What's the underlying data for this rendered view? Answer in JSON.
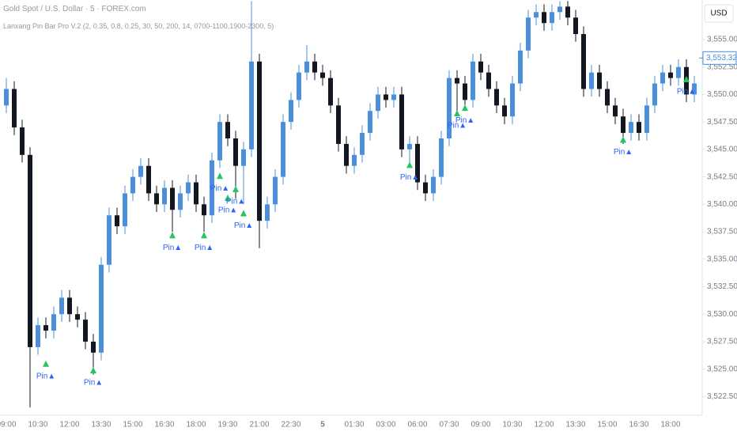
{
  "header": {
    "symbol": "Gold Spot / U.S. Dollar · 5 · FOREX.com",
    "indicator": "Lanxang Pin Bar Pro V.2 (2, 0.35, 0.8, 0.25, 30, 50, 200, 14, 0700-1100,1900-2300, 5)",
    "currency": "USD"
  },
  "chart_data": {
    "type": "candlestick",
    "categories": [
      "09:00",
      null,
      null,
      null,
      "10:30",
      null,
      null,
      null,
      "12:00",
      null,
      null,
      null,
      "13:30",
      null,
      null,
      null,
      "15:00",
      null,
      null,
      null,
      "16:30",
      null,
      null,
      null,
      "18:00",
      null,
      null,
      null,
      "19:30",
      null,
      null,
      null,
      "21:00",
      null,
      null,
      null,
      "22:30",
      null,
      null,
      null,
      "5",
      null,
      null,
      null,
      "01:30",
      null,
      null,
      null,
      "03:00",
      null,
      null,
      null,
      "06:00",
      null,
      null,
      null,
      "07:30",
      null,
      null,
      null,
      "09:00",
      null,
      null,
      null,
      "10:30",
      null,
      null,
      null,
      "12:00",
      null,
      null,
      null,
      "13:30",
      null,
      null,
      null,
      "15:00",
      null,
      null,
      null,
      "16:30",
      null,
      null,
      null,
      "18:00",
      null,
      null,
      null
    ],
    "open": [
      3549.0,
      3550.5,
      3547.0,
      3544.5,
      3527.0,
      3529.0,
      3528.5,
      3530.0,
      3531.5,
      3530.0,
      3529.5,
      3527.5,
      3526.5,
      3534.5,
      3539.0,
      3538.0,
      3541.0,
      3542.5,
      3543.5,
      3541.0,
      3540.0,
      3541.5,
      3539.5,
      3541.0,
      3542.0,
      3540.0,
      3539.0,
      3544.0,
      3547.5,
      3546.0,
      3543.5,
      3545.0,
      3553.0,
      3538.5,
      3540.0,
      3542.5,
      3547.5,
      3549.5,
      3552.0,
      3553.0,
      3552.0,
      3551.5,
      3549.0,
      3545.5,
      3543.5,
      3544.5,
      3546.5,
      3548.5,
      3550.0,
      3549.5,
      3550.0,
      3545.0,
      3545.5,
      3542.0,
      3541.0,
      3542.5,
      3546.0,
      3551.5,
      3551.0,
      3549.5,
      3553.0,
      3552.0,
      3550.5,
      3549.0,
      3548.0,
      3551.0,
      3554.0,
      3557.0,
      3557.5,
      3556.5,
      3557.5,
      3558.0,
      3557.0,
      3555.5,
      3550.5,
      3552.0,
      3550.5,
      3549.0,
      3548.0,
      3546.5,
      3547.5,
      3546.5,
      3549.0,
      3551.0,
      3552.0,
      3551.5,
      3552.5,
      3550.0
    ],
    "high": [
      3551.5,
      3551.2,
      3547.7,
      3545.2,
      3529.7,
      3529.7,
      3530.7,
      3532.2,
      3532.2,
      3530.7,
      3530.2,
      3528.2,
      3535.2,
      3539.7,
      3539.7,
      3541.7,
      3543.2,
      3544.2,
      3544.2,
      3541.7,
      3542.2,
      3542.2,
      3541.7,
      3542.7,
      3542.7,
      3540.7,
      3544.7,
      3548.2,
      3548.2,
      3546.7,
      3545.7,
      3558.5,
      3553.7,
      3540.7,
      3543.2,
      3548.2,
      3550.2,
      3552.7,
      3554.5,
      3553.7,
      3552.7,
      3552.2,
      3549.7,
      3546.2,
      3545.2,
      3547.2,
      3549.2,
      3550.7,
      3550.7,
      3550.7,
      3550.7,
      3546.2,
      3546.2,
      3542.7,
      3543.2,
      3546.7,
      3552.2,
      3552.2,
      3551.7,
      3553.7,
      3553.7,
      3552.7,
      3551.2,
      3549.7,
      3551.7,
      3554.7,
      3557.7,
      3558.2,
      3558.2,
      3558.2,
      3558.5,
      3558.5,
      3557.7,
      3556.2,
      3552.7,
      3552.7,
      3551.2,
      3549.7,
      3548.7,
      3548.2,
      3548.2,
      3549.7,
      3551.7,
      3552.7,
      3552.7,
      3553.2,
      3553.2,
      3551.7
    ],
    "low": [
      3548.3,
      3546.3,
      3543.8,
      3521.5,
      3526.3,
      3527.8,
      3527.8,
      3529.3,
      3529.3,
      3528.8,
      3526.8,
      3524.5,
      3525.8,
      3533.8,
      3537.3,
      3537.3,
      3540.3,
      3541.8,
      3540.3,
      3539.3,
      3539.3,
      3537.5,
      3538.8,
      3540.3,
      3539.3,
      3537.5,
      3538.3,
      3543.3,
      3545.3,
      3540.5,
      3540.0,
      3544.3,
      3536.0,
      3537.8,
      3539.3,
      3541.8,
      3546.8,
      3548.8,
      3551.3,
      3551.3,
      3550.8,
      3548.3,
      3544.8,
      3542.8,
      3542.8,
      3543.8,
      3545.8,
      3547.8,
      3548.8,
      3548.8,
      3544.3,
      3543.5,
      3541.3,
      3540.3,
      3540.3,
      3541.8,
      3545.3,
      3548.0,
      3548.5,
      3548.8,
      3551.3,
      3549.8,
      3548.3,
      3547.3,
      3547.3,
      3550.3,
      3553.3,
      3556.3,
      3555.8,
      3555.8,
      3556.8,
      3556.3,
      3554.8,
      3549.8,
      3549.8,
      3549.8,
      3548.3,
      3547.3,
      3545.5,
      3545.8,
      3545.8,
      3545.8,
      3548.3,
      3550.3,
      3550.8,
      3550.8,
      3549.3,
      3549.3
    ],
    "close": [
      3550.5,
      3547.0,
      3544.5,
      3527.0,
      3529.0,
      3528.5,
      3530.0,
      3531.5,
      3530.0,
      3529.5,
      3527.5,
      3526.5,
      3534.5,
      3539.0,
      3538.0,
      3541.0,
      3542.5,
      3543.5,
      3541.0,
      3540.0,
      3541.5,
      3539.5,
      3541.0,
      3542.0,
      3540.0,
      3539.0,
      3544.0,
      3547.5,
      3546.0,
      3543.5,
      3545.0,
      3553.0,
      3538.5,
      3540.0,
      3542.5,
      3547.5,
      3549.5,
      3552.0,
      3553.0,
      3552.0,
      3551.5,
      3549.0,
      3545.5,
      3543.5,
      3544.5,
      3546.5,
      3548.5,
      3550.0,
      3549.5,
      3550.0,
      3545.0,
      3545.5,
      3542.0,
      3541.0,
      3542.5,
      3546.0,
      3551.5,
      3551.0,
      3549.5,
      3553.0,
      3552.0,
      3550.5,
      3549.0,
      3548.0,
      3551.0,
      3554.0,
      3557.0,
      3557.5,
      3556.5,
      3557.5,
      3558.0,
      3557.0,
      3555.5,
      3550.5,
      3552.0,
      3550.5,
      3549.0,
      3548.0,
      3546.5,
      3547.5,
      3546.5,
      3549.0,
      3551.0,
      3552.0,
      3551.5,
      3552.5,
      3550.0,
      3551.0
    ],
    "up_color": "#4a8fdc",
    "down_color": "#131722",
    "signals": {
      "label": "Pin▲",
      "color": "#22c55e",
      "values": [
        null,
        null,
        null,
        null,
        null,
        3525.5,
        null,
        null,
        null,
        null,
        null,
        3524.9,
        null,
        null,
        null,
        null,
        null,
        null,
        null,
        null,
        null,
        3537.2,
        null,
        null,
        null,
        3537.2,
        null,
        3542.6,
        3540.6,
        3541.4,
        3539.2,
        null,
        null,
        null,
        null,
        null,
        null,
        null,
        null,
        null,
        null,
        null,
        null,
        null,
        null,
        null,
        null,
        null,
        null,
        null,
        null,
        3543.6,
        null,
        null,
        null,
        null,
        null,
        3548.3,
        3548.8,
        null,
        null,
        null,
        null,
        null,
        null,
        null,
        null,
        null,
        null,
        null,
        null,
        null,
        null,
        null,
        null,
        null,
        null,
        null,
        3545.9,
        null,
        null,
        null,
        null,
        null,
        null,
        null,
        3551.4,
        null
      ]
    },
    "last_price": {
      "value": 3553.32,
      "label": "3,553.32"
    },
    "ylim": [
      3520.8,
      3558.6
    ],
    "yticks": [
      {
        "value": 3522.5,
        "label": "3,522.50"
      },
      {
        "value": 3525,
        "label": "3,525.00"
      },
      {
        "value": 3527.5,
        "label": "3,527.50"
      },
      {
        "value": 3530,
        "label": "3,530.00"
      },
      {
        "value": 3532.5,
        "label": "3,532.50"
      },
      {
        "value": 3535,
        "label": "3,535.00"
      },
      {
        "value": 3537.5,
        "label": "3,537.50"
      },
      {
        "value": 3540,
        "label": "3,540.00"
      },
      {
        "value": 3542.5,
        "label": "3,542.50"
      },
      {
        "value": 3545,
        "label": "3,545.00"
      },
      {
        "value": 3547.5,
        "label": "3,547.50"
      },
      {
        "value": 3550,
        "label": "3,550.00"
      },
      {
        "value": 3552.5,
        "label": "3,552.50"
      },
      {
        "value": 3555,
        "label": "3,555.00"
      }
    ],
    "grid": false
  }
}
